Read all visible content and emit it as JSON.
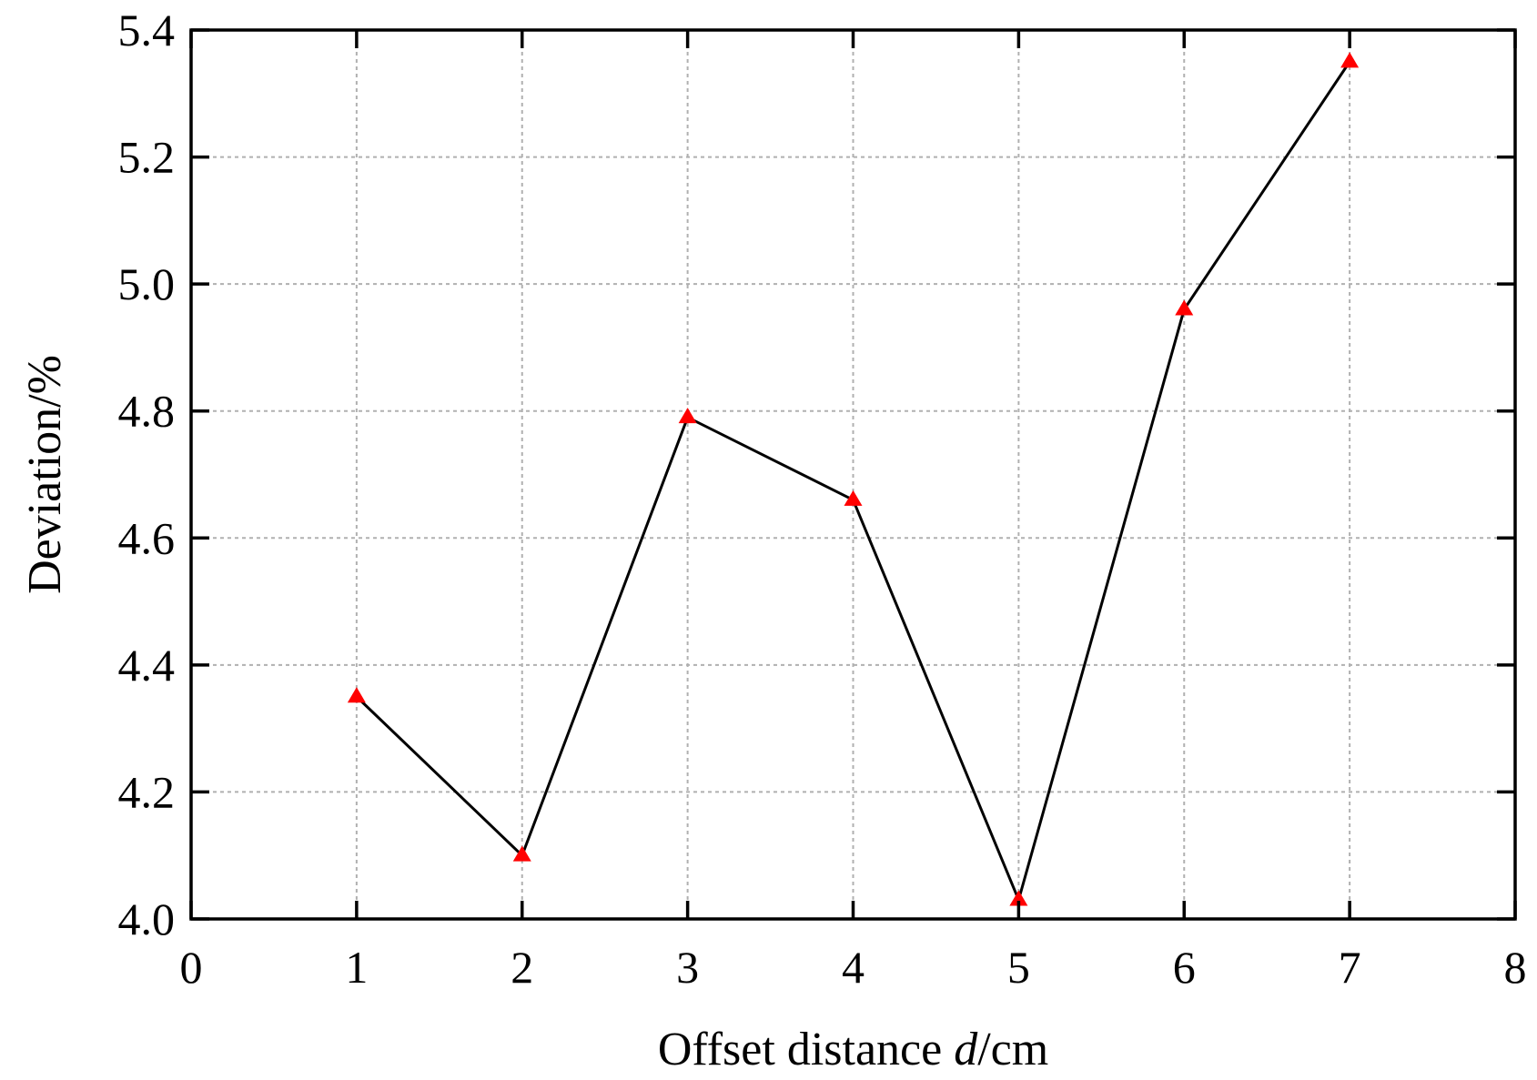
{
  "chart_data": {
    "type": "line",
    "title": "",
    "xlabel": {
      "main": "Offset distance ",
      "italic": "d",
      "unit": "/cm"
    },
    "ylabel": "Deviation/%",
    "xlim": [
      0,
      8
    ],
    "ylim": [
      4.0,
      5.4
    ],
    "xticks": [
      0,
      1,
      2,
      3,
      4,
      5,
      6,
      7,
      8
    ],
    "xtick_labels": [
      "0",
      "1",
      "2",
      "3",
      "4",
      "5",
      "6",
      "7",
      "8"
    ],
    "yticks": [
      4.0,
      4.2,
      4.4,
      4.6,
      4.8,
      5.0,
      5.2,
      5.4
    ],
    "ytick_labels": [
      "4.0",
      "4.2",
      "4.4",
      "4.6",
      "4.8",
      "5.0",
      "5.2",
      "5.4"
    ],
    "grid": true,
    "series": [
      {
        "x": [
          1,
          2,
          3,
          4,
          5,
          6,
          7
        ],
        "y": [
          4.35,
          4.1,
          4.79,
          4.66,
          4.03,
          4.96,
          5.35
        ],
        "line_color": "#000000",
        "marker": "triangle",
        "marker_color": "#ff0000"
      }
    ]
  }
}
